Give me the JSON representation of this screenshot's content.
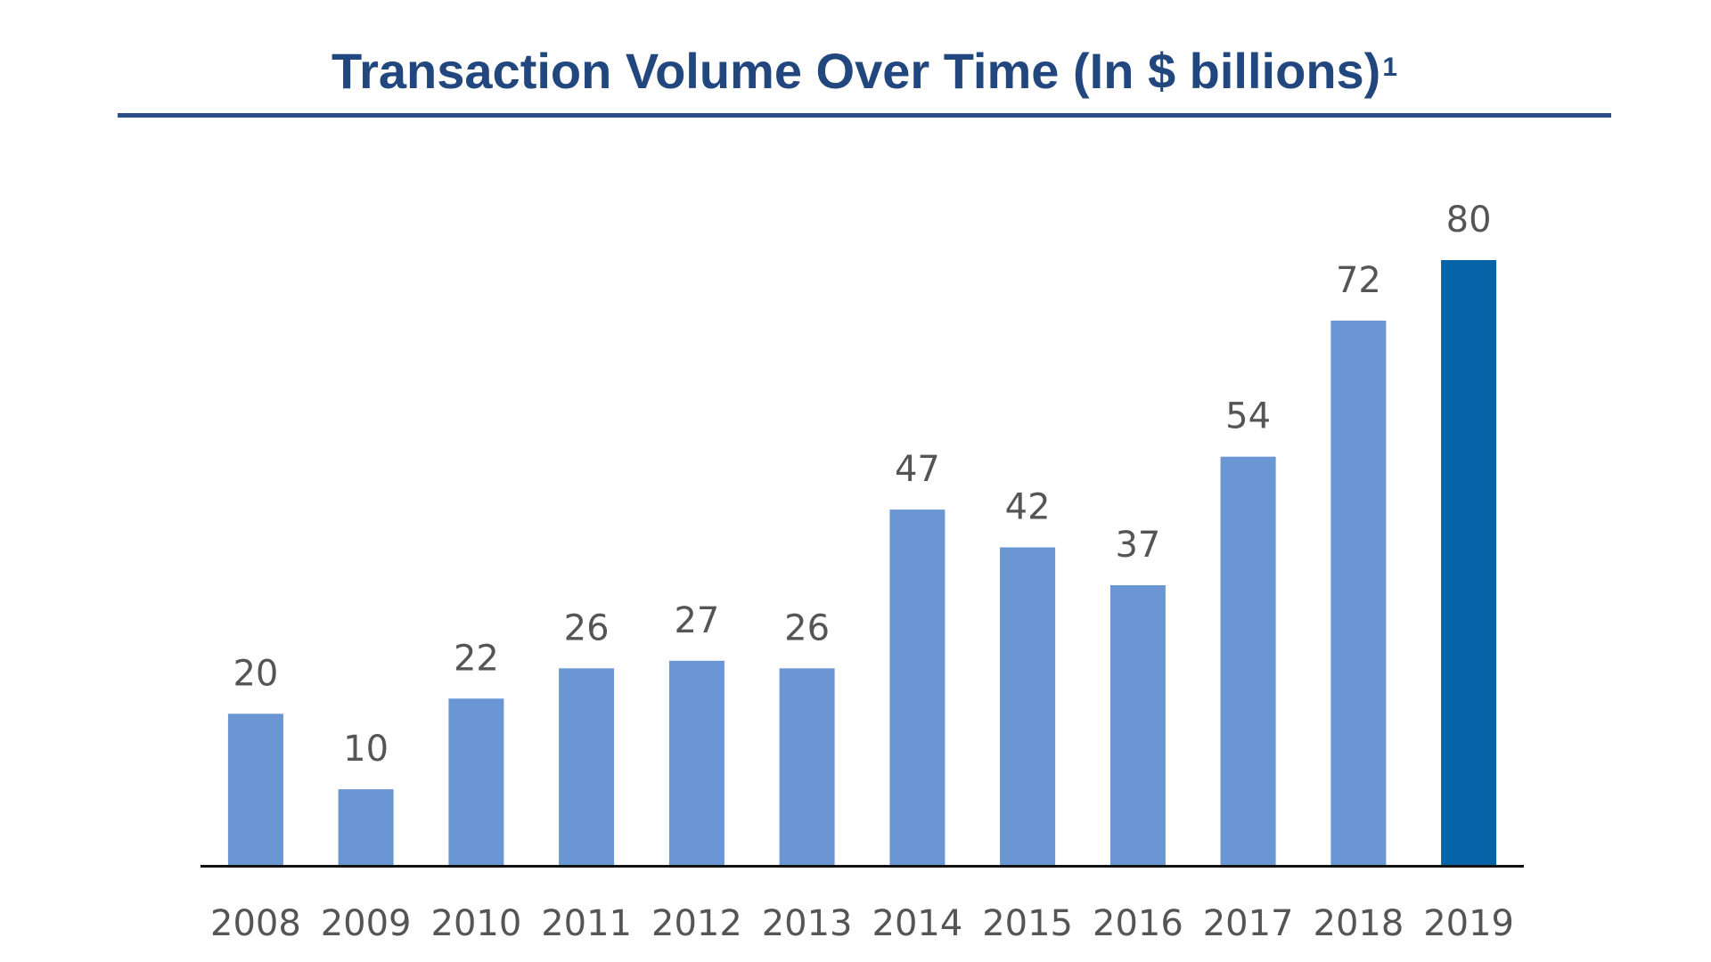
{
  "title": "Transaction Volume Over Time (In $ billions)",
  "title_footnote": "1",
  "colors": {
    "title": "#22467e",
    "rule": "#2b4f86",
    "bar": "#6b96d4",
    "highlight_bar": "#0564a8",
    "axis": "#111111",
    "label_text": "#555555"
  },
  "chart_data": {
    "type": "bar",
    "title": "Transaction Volume Over Time (In $ billions)",
    "xlabel": "",
    "ylabel": "",
    "categories": [
      "2008",
      "2009",
      "2010",
      "2011",
      "2012",
      "2013",
      "2014",
      "2015",
      "2016",
      "2017",
      "2018",
      "2019"
    ],
    "values": [
      20,
      10,
      22,
      26,
      27,
      26,
      47,
      42,
      37,
      54,
      72,
      80
    ],
    "data_labels": [
      "20",
      "10",
      "22",
      "26",
      "27",
      "26",
      "47",
      "42",
      "37",
      "54",
      "72",
      "80"
    ],
    "highlight_category": "2019",
    "ylim": [
      0,
      80
    ],
    "grid": false,
    "legend": "none"
  }
}
